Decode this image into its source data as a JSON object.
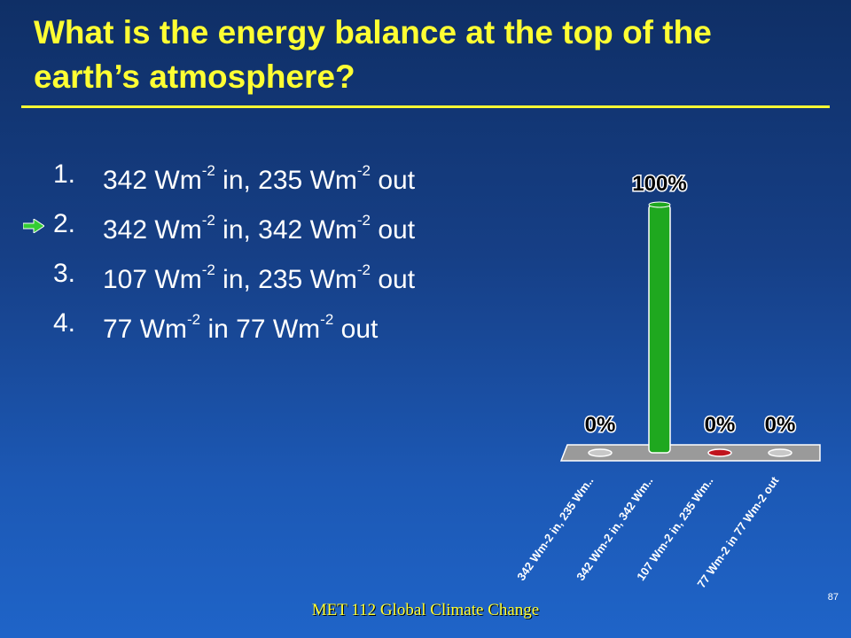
{
  "slide": {
    "title": "What is the energy balance at the top of the earth’s atmosphere?",
    "footer": "MET 112 Global Climate Change",
    "page_number": "87"
  },
  "options": [
    {
      "number": "1.",
      "a": "342 Wm",
      "b": " in, 235 Wm",
      "c": " out",
      "sup1": "-2",
      "sup2": "-2",
      "correct": false
    },
    {
      "number": "2.",
      "a": "342 Wm",
      "b": " in, 342 Wm",
      "c": " out",
      "sup1": "-2",
      "sup2": "-2",
      "correct": true
    },
    {
      "number": "3.",
      "a": "107 Wm",
      "b": " in, 235 Wm",
      "c": " out",
      "sup1": "-2",
      "sup2": "-2",
      "correct": false
    },
    {
      "number": "4.",
      "a": "77 Wm",
      "b": " in 77 Wm",
      "c": " out",
      "sup1": "-2",
      "sup2": "-2",
      "correct": false
    }
  ],
  "chart_data": {
    "type": "bar",
    "categories": [
      "342 Wm-2 in, 235 Wm..",
      "342 Wm-2 in, 342 Wm..",
      "107 Wm-2 in, 235 Wm..",
      "77 Wm-2 in 77 Wm-2 out"
    ],
    "values": [
      0,
      100,
      0,
      0
    ],
    "data_labels": [
      "0%",
      "100%",
      "0%",
      "0%"
    ],
    "ylim": [
      0,
      100
    ],
    "bar_colors": [
      "#c8c8c8",
      "#1fa81f",
      "#c0141e",
      "#c8c8c8"
    ],
    "floor_color": "#9a9a9a"
  }
}
